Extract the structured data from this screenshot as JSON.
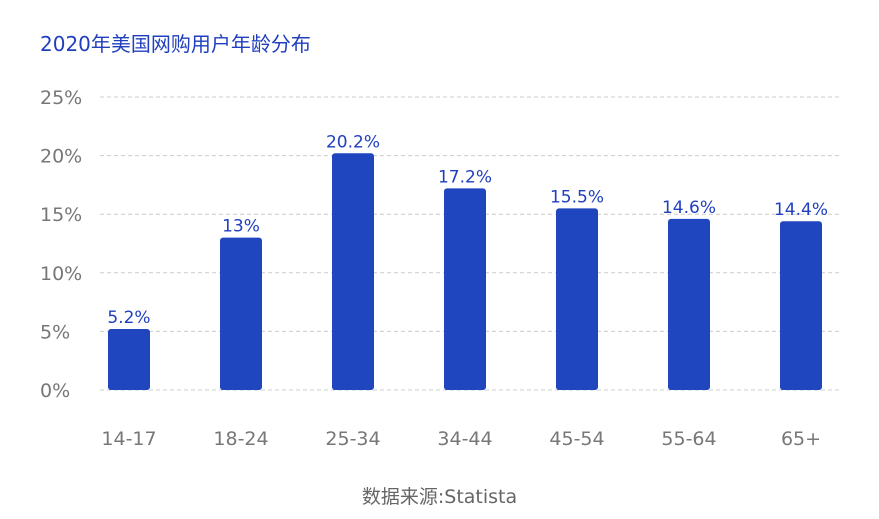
{
  "title": "2020年美国网购用户年龄分布",
  "source": "数据来源:Statista",
  "chart_data": {
    "type": "bar",
    "categories": [
      "14-17",
      "18-24",
      "25-34",
      "34-44",
      "45-54",
      "55-64",
      "65+"
    ],
    "values": [
      5.2,
      13,
      20.2,
      17.2,
      15.5,
      14.6,
      14.4
    ],
    "data_labels": [
      "5.2%",
      "13%",
      "20.2%",
      "17.2%",
      "15.5%",
      "14.6%",
      "14.4%"
    ],
    "yticks": [
      "0%",
      "5%",
      "10%",
      "15%",
      "20%",
      "25%"
    ],
    "ylim": [
      0,
      25
    ],
    "grid": true,
    "colors": {
      "bar": "#1f45bf",
      "label": "#1f3fbf",
      "tick": "#777777",
      "grid": "#cccccc"
    }
  }
}
